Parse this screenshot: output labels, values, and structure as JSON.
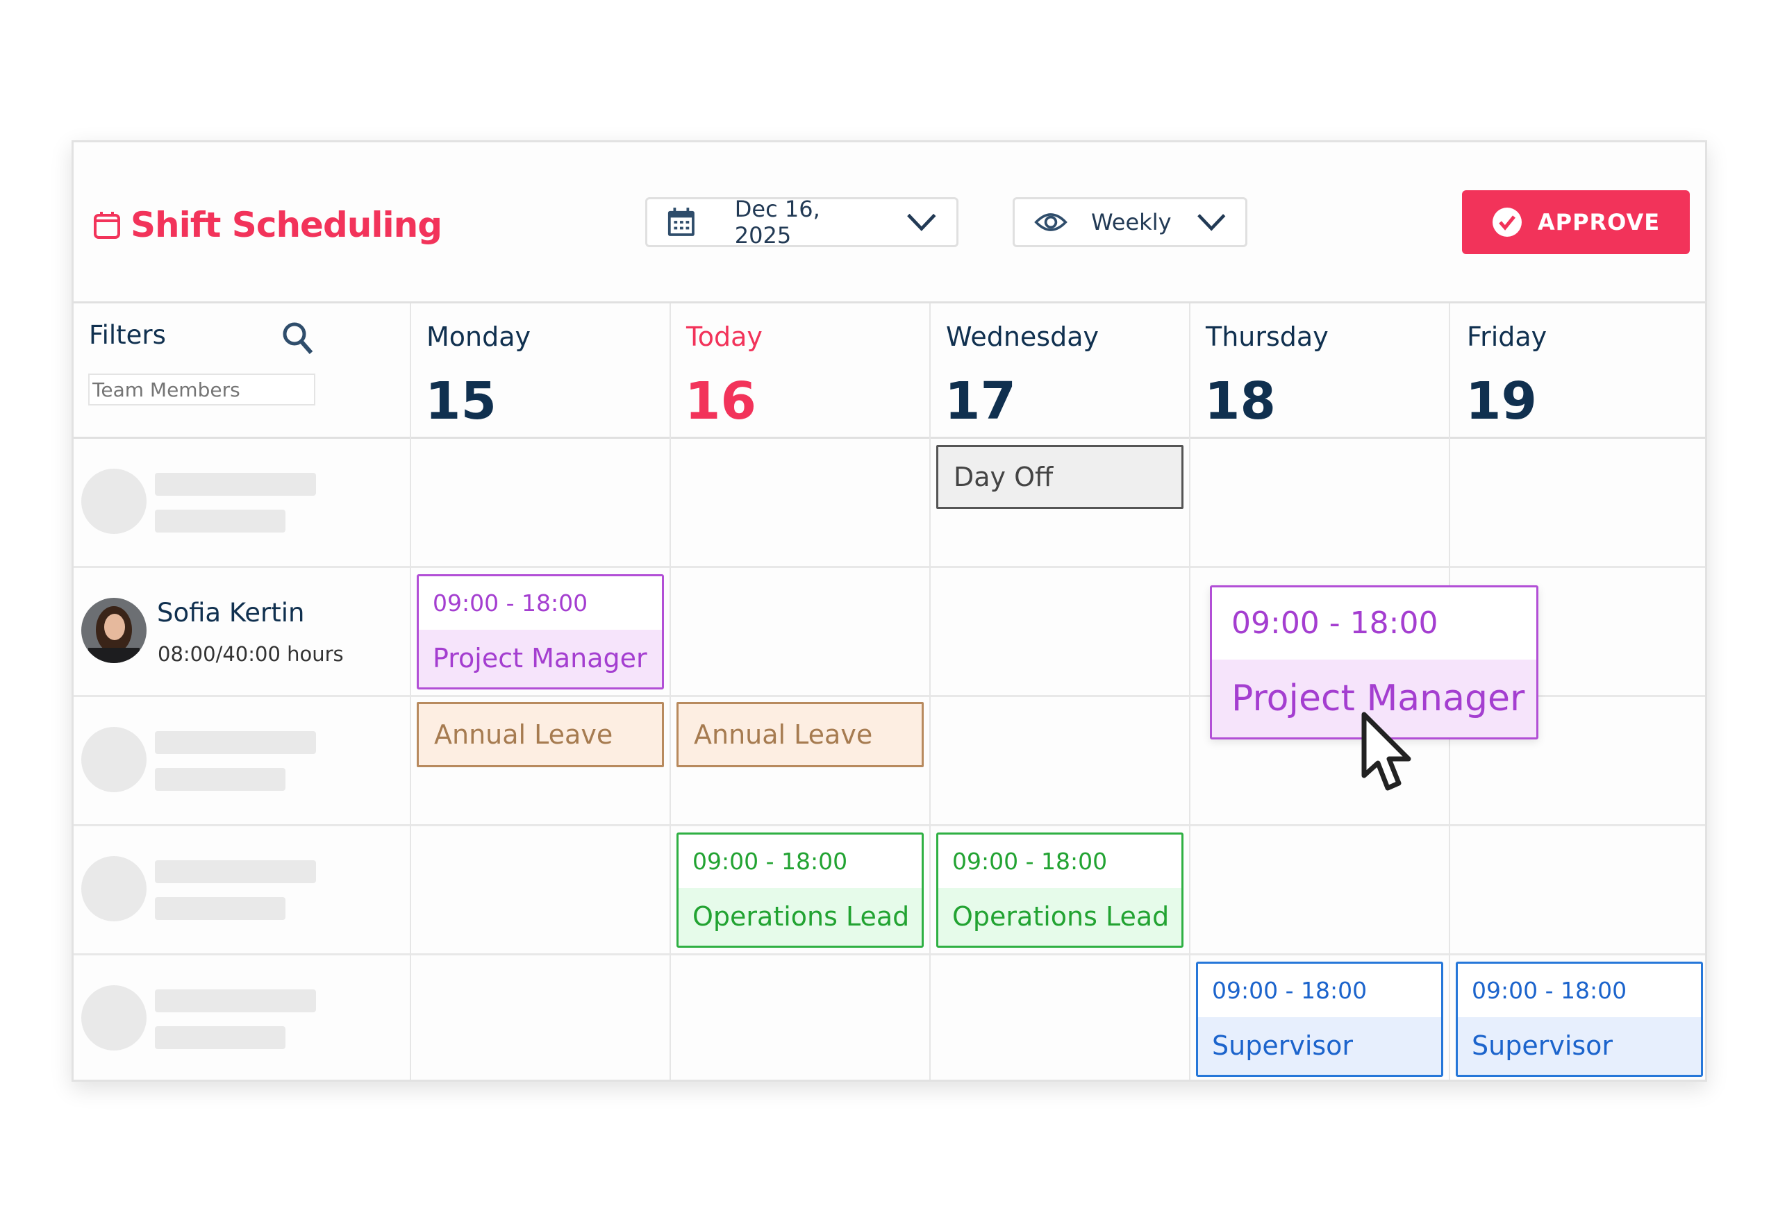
{
  "header": {
    "title": "Shift Scheduling",
    "date": "Dec 16, 2025",
    "view": "Weekly",
    "approve_label": "APPROVE"
  },
  "colors": {
    "accent": "#f2335a",
    "navy": "#10304f",
    "project_manager": "#a43ed0",
    "operations_lead": "#22a332",
    "supervisor": "#1c64cc",
    "annual_leave": "#a67b50"
  },
  "filters": {
    "label": "Filters",
    "input_placeholder": "Team Members"
  },
  "days": [
    {
      "name": "Monday",
      "num": "15"
    },
    {
      "name": "Today",
      "num": "16"
    },
    {
      "name": "Wednesday",
      "num": "17"
    },
    {
      "name": "Thursday",
      "num": "18"
    },
    {
      "name": "Friday",
      "num": "19"
    }
  ],
  "employee": {
    "name": "Sofia Kertin",
    "hours": "08:00/40:00 hours"
  },
  "entries": {
    "day_off": "Day Off",
    "pm_mon": {
      "time": "09:00 - 18:00",
      "role": "Project Manager"
    },
    "pm_thu_dragging": {
      "time": "09:00 - 18:00",
      "role": "Project Manager"
    },
    "leave_mon": "Annual Leave",
    "leave_tue": "Annual Leave",
    "ol_tue": {
      "time": "09:00 - 18:00",
      "role": "Operations Lead"
    },
    "ol_wed": {
      "time": "09:00 - 18:00",
      "role": "Operations Lead"
    },
    "sv_thu": {
      "time": "09:00 - 18:00",
      "role": "Supervisor"
    },
    "sv_fri": {
      "time": "09:00 - 18:00",
      "role": "Supervisor"
    }
  }
}
